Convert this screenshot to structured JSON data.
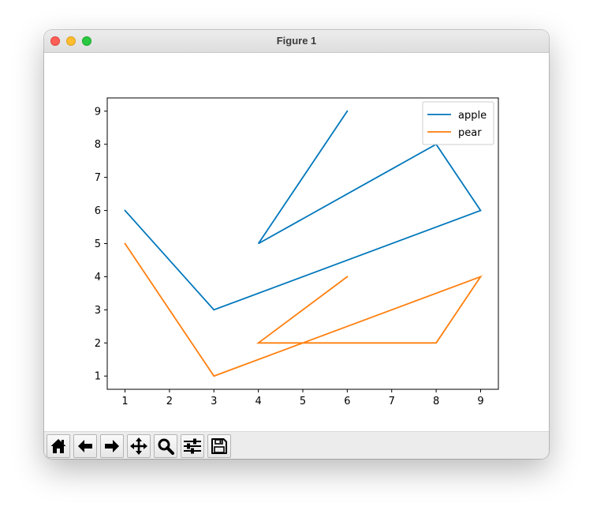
{
  "window": {
    "title": "Figure 1"
  },
  "toolbar": {
    "buttons": [
      {
        "name": "home-button",
        "icon": "home-icon"
      },
      {
        "name": "back-button",
        "icon": "arrow-left-icon"
      },
      {
        "name": "forward-button",
        "icon": "arrow-right-icon"
      },
      {
        "name": "pan-button",
        "icon": "move-icon"
      },
      {
        "name": "zoom-button",
        "icon": "magnifier-icon"
      },
      {
        "name": "configure-subplots-button",
        "icon": "sliders-icon"
      },
      {
        "name": "save-button",
        "icon": "floppy-disk-icon"
      }
    ]
  },
  "chart_data": {
    "type": "line",
    "title": "",
    "xlabel": "",
    "ylabel": "",
    "xlim": [
      0.6,
      9.4
    ],
    "ylim": [
      0.6,
      9.4
    ],
    "xticks": [
      1,
      2,
      3,
      4,
      5,
      6,
      7,
      8,
      9
    ],
    "yticks": [
      1,
      2,
      3,
      4,
      5,
      6,
      7,
      8,
      9
    ],
    "grid": false,
    "legend_position": "top-right",
    "series": [
      {
        "name": "apple",
        "color": "#0077bb",
        "x": [
          1,
          3,
          9,
          8,
          4,
          6
        ],
        "y": [
          6,
          3,
          6,
          8,
          5,
          9
        ]
      },
      {
        "name": "pear",
        "color": "#ff7f0e",
        "x": [
          1,
          3,
          9,
          8,
          4,
          6
        ],
        "y": [
          5,
          1,
          4,
          2,
          2,
          4
        ]
      }
    ]
  }
}
